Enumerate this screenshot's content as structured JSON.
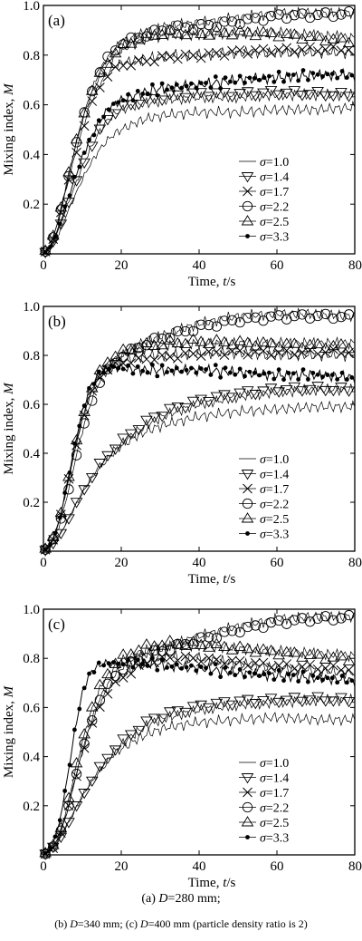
{
  "chart_data": [
    {
      "type": "line",
      "panel_label": "(a)",
      "xlabel_text": "Time, ",
      "xlabel_var": "t",
      "xlabel_unit": "/s",
      "ylabel_text": "Mixing index, ",
      "ylabel_var": "M",
      "xlim": [
        0,
        80
      ],
      "ylim": [
        0,
        1.0
      ],
      "xticks": [
        "0",
        "20",
        "40",
        "60",
        "80"
      ],
      "yticks": [
        "0.2",
        "0.4",
        "0.6",
        "0.8",
        "1.0"
      ],
      "legend_position": "bottom-right",
      "series": [
        {
          "name": "σ=1.0",
          "marker": "none",
          "x": [
            0,
            2,
            4,
            6,
            8,
            10,
            12,
            14,
            16,
            18,
            20,
            24,
            28,
            32,
            40,
            50,
            60,
            70,
            80
          ],
          "y": [
            0,
            0.02,
            0.08,
            0.16,
            0.23,
            0.3,
            0.36,
            0.41,
            0.45,
            0.48,
            0.5,
            0.53,
            0.55,
            0.56,
            0.57,
            0.57,
            0.58,
            0.58,
            0.59
          ]
        },
        {
          "name": "σ=1.4",
          "marker": "triangle-down",
          "x": [
            0,
            2,
            4,
            6,
            8,
            10,
            12,
            14,
            16,
            18,
            20,
            24,
            28,
            32,
            40,
            50,
            60,
            70,
            80
          ],
          "y": [
            0,
            0.03,
            0.1,
            0.19,
            0.27,
            0.35,
            0.42,
            0.48,
            0.53,
            0.56,
            0.58,
            0.6,
            0.61,
            0.62,
            0.63,
            0.63,
            0.64,
            0.64,
            0.64
          ]
        },
        {
          "name": "σ=1.7",
          "marker": "x",
          "x": [
            0,
            2,
            4,
            6,
            8,
            10,
            12,
            14,
            16,
            18,
            20,
            24,
            28,
            32,
            40,
            50,
            60,
            70,
            80
          ],
          "y": [
            0,
            0.04,
            0.14,
            0.27,
            0.39,
            0.5,
            0.6,
            0.67,
            0.72,
            0.75,
            0.77,
            0.78,
            0.79,
            0.8,
            0.8,
            0.81,
            0.81,
            0.81,
            0.81
          ]
        },
        {
          "name": "σ=2.2",
          "marker": "circle",
          "x": [
            0,
            2,
            4,
            6,
            8,
            10,
            12,
            14,
            16,
            18,
            20,
            24,
            28,
            32,
            40,
            50,
            60,
            70,
            80
          ],
          "y": [
            0,
            0.04,
            0.14,
            0.28,
            0.42,
            0.54,
            0.64,
            0.72,
            0.78,
            0.82,
            0.85,
            0.88,
            0.9,
            0.92,
            0.93,
            0.95,
            0.97,
            0.97,
            0.97
          ]
        },
        {
          "name": "σ=2.5",
          "marker": "triangle-up",
          "x": [
            0,
            2,
            4,
            6,
            8,
            10,
            12,
            14,
            16,
            18,
            20,
            24,
            28,
            32,
            40,
            50,
            60,
            70,
            80
          ],
          "y": [
            0,
            0.04,
            0.15,
            0.29,
            0.42,
            0.54,
            0.63,
            0.7,
            0.75,
            0.79,
            0.82,
            0.85,
            0.87,
            0.88,
            0.88,
            0.89,
            0.89,
            0.88,
            0.87
          ]
        },
        {
          "name": "σ=3.3",
          "marker": "dot",
          "x": [
            0,
            2,
            4,
            6,
            8,
            10,
            12,
            14,
            16,
            18,
            20,
            24,
            28,
            32,
            40,
            50,
            60,
            70,
            80
          ],
          "y": [
            0,
            0.03,
            0.11,
            0.21,
            0.3,
            0.39,
            0.46,
            0.52,
            0.57,
            0.6,
            0.62,
            0.64,
            0.66,
            0.67,
            0.68,
            0.7,
            0.71,
            0.72,
            0.72
          ]
        }
      ]
    },
    {
      "type": "line",
      "panel_label": "(b)",
      "xlabel_text": "Time, ",
      "xlabel_var": "t",
      "xlabel_unit": "/s",
      "ylabel_text": "Mixing index, ",
      "ylabel_var": "M",
      "xlim": [
        0,
        80
      ],
      "ylim": [
        0,
        1.0
      ],
      "xticks": [
        "0",
        "20",
        "40",
        "60",
        "80"
      ],
      "yticks": [
        "0.2",
        "0.4",
        "0.6",
        "0.8",
        "1.0"
      ],
      "legend_position": "bottom-right",
      "series": [
        {
          "name": "σ=1.0",
          "marker": "none",
          "x": [
            0,
            2,
            4,
            6,
            8,
            10,
            12,
            14,
            16,
            18,
            20,
            24,
            28,
            32,
            40,
            50,
            60,
            70,
            80
          ],
          "y": [
            0,
            0.02,
            0.06,
            0.12,
            0.18,
            0.24,
            0.29,
            0.33,
            0.37,
            0.4,
            0.43,
            0.47,
            0.5,
            0.52,
            0.55,
            0.57,
            0.58,
            0.59,
            0.59
          ]
        },
        {
          "name": "σ=1.4",
          "marker": "triangle-down",
          "x": [
            0,
            2,
            4,
            6,
            8,
            10,
            12,
            14,
            16,
            18,
            20,
            24,
            28,
            32,
            40,
            50,
            60,
            70,
            80
          ],
          "y": [
            0,
            0.02,
            0.06,
            0.12,
            0.18,
            0.24,
            0.29,
            0.34,
            0.38,
            0.41,
            0.44,
            0.49,
            0.53,
            0.56,
            0.6,
            0.63,
            0.65,
            0.66,
            0.66
          ]
        },
        {
          "name": "σ=1.7",
          "marker": "x",
          "x": [
            0,
            2,
            4,
            6,
            8,
            10,
            12,
            14,
            16,
            18,
            20,
            24,
            28,
            32,
            40,
            50,
            60,
            70,
            80
          ],
          "y": [
            0,
            0.03,
            0.12,
            0.26,
            0.41,
            0.54,
            0.64,
            0.71,
            0.75,
            0.77,
            0.78,
            0.79,
            0.8,
            0.8,
            0.81,
            0.81,
            0.8,
            0.8,
            0.8
          ]
        },
        {
          "name": "σ=2.2",
          "marker": "circle",
          "x": [
            0,
            2,
            4,
            6,
            8,
            10,
            12,
            14,
            16,
            18,
            20,
            24,
            28,
            32,
            40,
            50,
            60,
            70,
            80
          ],
          "y": [
            0,
            0.03,
            0.1,
            0.22,
            0.36,
            0.49,
            0.6,
            0.68,
            0.73,
            0.77,
            0.8,
            0.84,
            0.87,
            0.89,
            0.93,
            0.96,
            0.97,
            0.97,
            0.96
          ]
        },
        {
          "name": "σ=2.5",
          "marker": "triangle-up",
          "x": [
            0,
            2,
            4,
            6,
            8,
            10,
            12,
            14,
            16,
            18,
            20,
            24,
            28,
            32,
            40,
            50,
            60,
            70,
            80
          ],
          "y": [
            0,
            0.03,
            0.12,
            0.26,
            0.41,
            0.54,
            0.64,
            0.71,
            0.76,
            0.78,
            0.8,
            0.82,
            0.83,
            0.84,
            0.85,
            0.85,
            0.85,
            0.85,
            0.85
          ]
        },
        {
          "name": "σ=3.3",
          "marker": "dot",
          "x": [
            0,
            2,
            4,
            6,
            8,
            10,
            12,
            14,
            16,
            18,
            20,
            24,
            28,
            32,
            40,
            50,
            60,
            70,
            80
          ],
          "y": [
            0,
            0.03,
            0.12,
            0.27,
            0.43,
            0.57,
            0.67,
            0.72,
            0.74,
            0.75,
            0.75,
            0.74,
            0.74,
            0.74,
            0.74,
            0.73,
            0.72,
            0.72,
            0.71
          ]
        }
      ]
    },
    {
      "type": "line",
      "panel_label": "(c)",
      "xlabel_text": "Time, ",
      "xlabel_var": "t",
      "xlabel_unit": "/s",
      "ylabel_text": "Mixing index, ",
      "ylabel_var": "M",
      "xlim": [
        0,
        80
      ],
      "ylim": [
        0,
        1.0
      ],
      "xticks": [
        "0",
        "20",
        "40",
        "60",
        "80"
      ],
      "yticks": [
        "0.2",
        "0.4",
        "0.6",
        "0.8",
        "1.0"
      ],
      "legend_position": "bottom-right",
      "series": [
        {
          "name": "σ=1.0",
          "marker": "none",
          "x": [
            0,
            2,
            4,
            6,
            8,
            10,
            12,
            14,
            16,
            18,
            20,
            24,
            28,
            32,
            40,
            50,
            60,
            70,
            80
          ],
          "y": [
            0,
            0.02,
            0.06,
            0.12,
            0.18,
            0.24,
            0.29,
            0.33,
            0.37,
            0.41,
            0.43,
            0.47,
            0.5,
            0.52,
            0.54,
            0.55,
            0.56,
            0.55,
            0.55
          ]
        },
        {
          "name": "σ=1.4",
          "marker": "triangle-down",
          "x": [
            0,
            2,
            4,
            6,
            8,
            10,
            12,
            14,
            16,
            18,
            20,
            24,
            28,
            32,
            40,
            50,
            60,
            70,
            80
          ],
          "y": [
            0,
            0.02,
            0.06,
            0.12,
            0.18,
            0.24,
            0.29,
            0.34,
            0.38,
            0.42,
            0.45,
            0.5,
            0.54,
            0.56,
            0.59,
            0.61,
            0.62,
            0.63,
            0.63
          ]
        },
        {
          "name": "σ=1.7",
          "marker": "x",
          "x": [
            0,
            2,
            4,
            6,
            8,
            10,
            12,
            14,
            16,
            18,
            20,
            24,
            28,
            32,
            40,
            50,
            60,
            70,
            80
          ],
          "y": [
            0,
            0.02,
            0.07,
            0.17,
            0.3,
            0.42,
            0.52,
            0.6,
            0.66,
            0.7,
            0.73,
            0.77,
            0.8,
            0.81,
            0.8,
            0.78,
            0.76,
            0.75,
            0.74
          ]
        },
        {
          "name": "σ=2.2",
          "marker": "circle",
          "x": [
            0,
            2,
            4,
            6,
            8,
            10,
            12,
            14,
            16,
            18,
            20,
            24,
            28,
            32,
            40,
            50,
            60,
            70,
            80
          ],
          "y": [
            0,
            0.02,
            0.07,
            0.17,
            0.3,
            0.42,
            0.53,
            0.62,
            0.68,
            0.73,
            0.76,
            0.8,
            0.83,
            0.85,
            0.89,
            0.93,
            0.96,
            0.97,
            0.97
          ]
        },
        {
          "name": "σ=2.5",
          "marker": "triangle-up",
          "x": [
            0,
            2,
            4,
            6,
            8,
            10,
            12,
            14,
            16,
            18,
            20,
            24,
            28,
            32,
            40,
            50,
            60,
            70,
            80
          ],
          "y": [
            0,
            0.02,
            0.08,
            0.19,
            0.33,
            0.46,
            0.57,
            0.66,
            0.72,
            0.76,
            0.79,
            0.82,
            0.84,
            0.85,
            0.85,
            0.84,
            0.83,
            0.82,
            0.81
          ]
        },
        {
          "name": "σ=3.3",
          "marker": "dot",
          "x": [
            0,
            2,
            4,
            6,
            8,
            10,
            12,
            14,
            16,
            18,
            20,
            24,
            28,
            32,
            40,
            50,
            60,
            70,
            80
          ],
          "y": [
            0,
            0.03,
            0.12,
            0.3,
            0.5,
            0.66,
            0.74,
            0.77,
            0.78,
            0.78,
            0.78,
            0.78,
            0.78,
            0.77,
            0.76,
            0.74,
            0.73,
            0.72,
            0.71
          ]
        }
      ]
    }
  ],
  "caption": {
    "line1_prefix": "(a)  ",
    "line1_var": "D",
    "line1_rest": "=280   mm;",
    "line2_pre": "(b) ",
    "line2_var1": "D",
    "line2_mid": "=340 mm; (c) ",
    "line2_var2": "D",
    "line2_rest": "=400 mm (particle density ratio is 2)"
  }
}
